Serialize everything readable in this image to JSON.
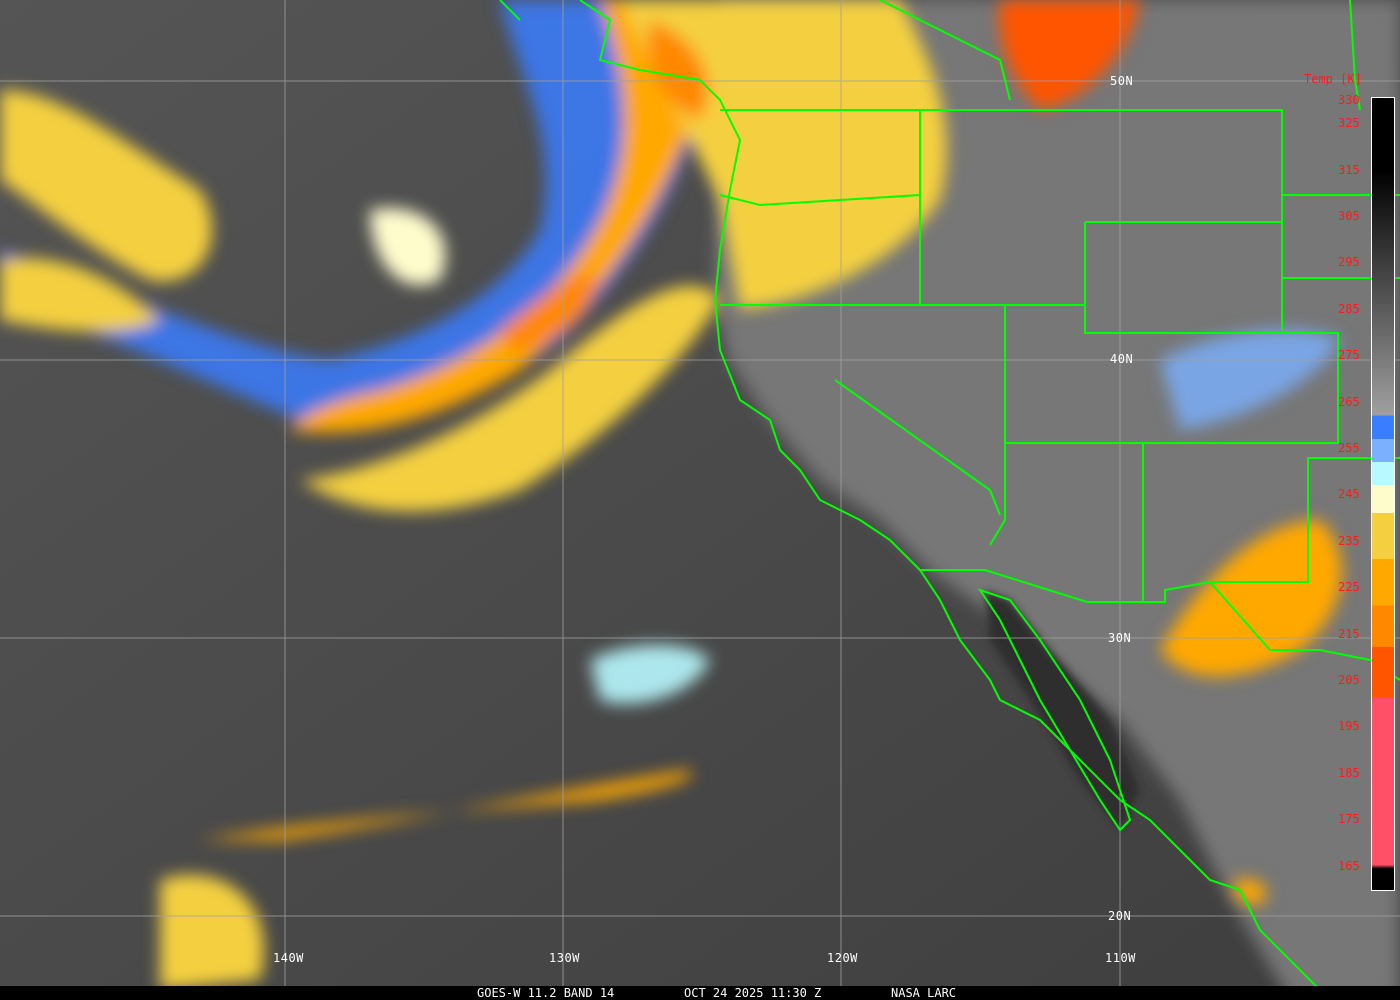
{
  "caption": {
    "satellite": "GOES-W 11.2 BAND 14",
    "datetime": "OCT 24 2025 11:30 Z",
    "source": "NASA LARC"
  },
  "legend": {
    "title": "Temp [K]",
    "ticks": [
      "330",
      "325",
      "315",
      "305",
      "295",
      "285",
      "275",
      "265",
      "255",
      "245",
      "235",
      "225",
      "215",
      "205",
      "195",
      "185",
      "175",
      "165"
    ],
    "tick_values": [
      330,
      325,
      315,
      305,
      295,
      285,
      275,
      265,
      255,
      245,
      235,
      225,
      215,
      205,
      195,
      185,
      175,
      165
    ],
    "color_stops": [
      {
        "from": 330,
        "to": 262,
        "color": "gradient black-to-gray"
      },
      {
        "from": 262,
        "to": 257,
        "color": "#3a7dff"
      },
      {
        "from": 257,
        "to": 252,
        "color": "#7ab0ff"
      },
      {
        "from": 252,
        "to": 247,
        "color": "#b8f8ff"
      },
      {
        "from": 247,
        "to": 241,
        "color": "#fffccc"
      },
      {
        "from": 241,
        "to": 231,
        "color": "#f4d040"
      },
      {
        "from": 231,
        "to": 221,
        "color": "#ffa800"
      },
      {
        "from": 221,
        "to": 212,
        "color": "#ff8800"
      },
      {
        "from": 212,
        "to": 201,
        "color": "#ff5500"
      },
      {
        "from": 201,
        "to": 165,
        "color": "#ff5068"
      }
    ]
  },
  "grid": {
    "lat_labels": [
      "50N",
      "40N",
      "30N",
      "20N"
    ],
    "lon_labels": [
      "140W",
      "130W",
      "120W",
      "110W"
    ]
  },
  "colors": {
    "boundaries": "#00ff00",
    "gridlines": "#a0a0a0",
    "labels": "#ffffff",
    "ticks": "#ff1a1a"
  }
}
